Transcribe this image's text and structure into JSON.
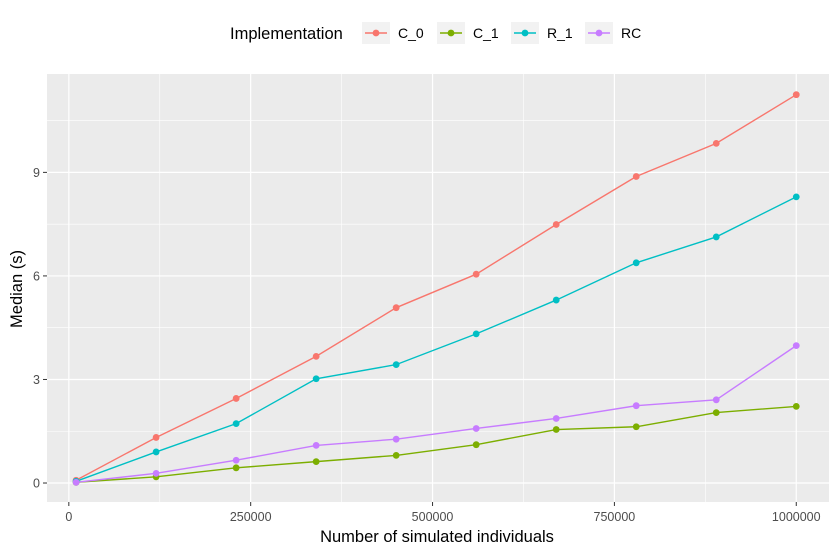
{
  "chart_data": {
    "type": "line",
    "xlabel": "Number of simulated individuals",
    "ylabel": "Median (s)",
    "xlim": [
      -30000,
      1045000
    ],
    "ylim": [
      -0.55,
      11.85
    ],
    "x_ticks": [
      0,
      250000,
      500000,
      750000,
      1000000
    ],
    "x_tick_labels": [
      "0",
      "250000",
      "500000",
      "750000",
      "1000000"
    ],
    "y_ticks": [
      0,
      3,
      6,
      9
    ],
    "y_tick_labels": [
      "0",
      "3",
      "6",
      "9"
    ],
    "grid": true,
    "legend_title": "Implementation",
    "legend_position": "top",
    "x": [
      10000,
      120000,
      230000,
      340000,
      450000,
      560000,
      670000,
      780000,
      890000,
      1000000
    ],
    "series": [
      {
        "name": "C_0",
        "color": "#F8766D",
        "values": [
          0.08,
          1.32,
          2.45,
          3.67,
          5.08,
          6.05,
          7.49,
          8.88,
          9.84,
          11.25
        ]
      },
      {
        "name": "C_1",
        "color": "#7CAE00",
        "values": [
          0.02,
          0.18,
          0.44,
          0.62,
          0.8,
          1.11,
          1.55,
          1.63,
          2.04,
          2.22
        ]
      },
      {
        "name": "R_1",
        "color": "#00BFC4",
        "values": [
          0.05,
          0.9,
          1.72,
          3.02,
          3.43,
          4.32,
          5.3,
          6.38,
          7.13,
          8.29
        ]
      },
      {
        "name": "RC",
        "color": "#C77CFF",
        "values": [
          0.02,
          0.28,
          0.66,
          1.09,
          1.27,
          1.58,
          1.87,
          2.24,
          2.41,
          3.98
        ]
      }
    ]
  }
}
